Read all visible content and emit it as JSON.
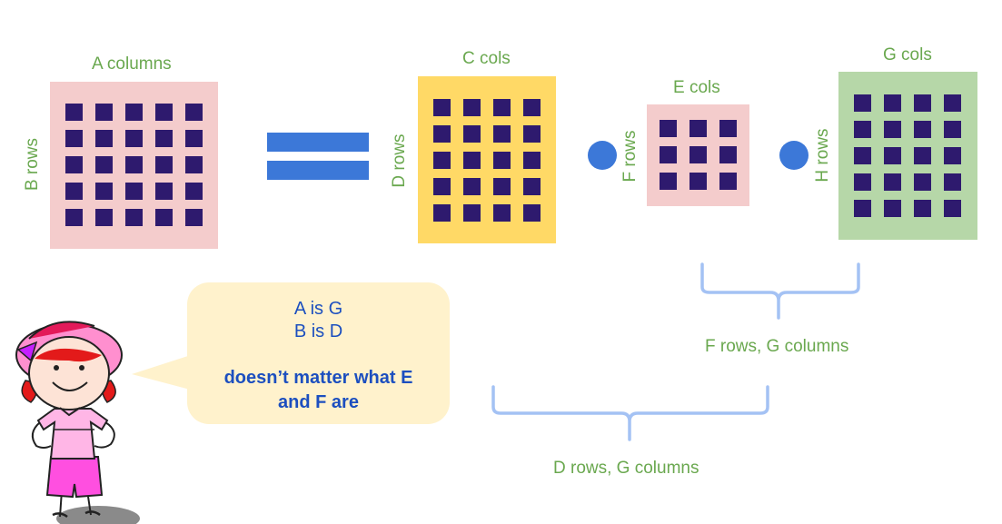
{
  "matrices": {
    "a": {
      "col_label": "A columns",
      "row_label": "B rows",
      "color": "#f4cccc",
      "rows": 5,
      "cols": 5
    },
    "c": {
      "col_label": "C cols",
      "row_label": "D rows",
      "color": "#ffd966",
      "rows": 5,
      "cols": 4
    },
    "e": {
      "col_label": "E cols",
      "row_label": "F rows",
      "color": "#f4cccc",
      "rows": 3,
      "cols": 3
    },
    "g": {
      "col_label": "G cols",
      "row_label": "H rows",
      "color": "#b6d7a8",
      "rows": 5,
      "cols": 4
    }
  },
  "speech": {
    "line1": "A is G",
    "line2": "B is D",
    "line3": "doesn’t matter what E",
    "line4": "and F are"
  },
  "braces": {
    "fg_label": "F rows, G columns",
    "dg_label": "D rows, G columns"
  },
  "colors": {
    "cell": "#2e1a6e",
    "operator": "#3c78d8",
    "label": "#6aa84f",
    "brace": "#a4c2f4",
    "speech_bg": "#fff2cc",
    "speech_text": "#1c4fbf"
  }
}
